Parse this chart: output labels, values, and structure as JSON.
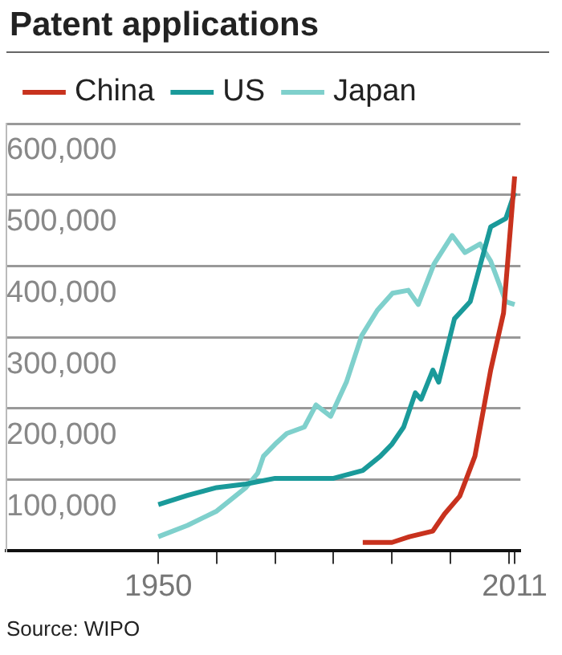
{
  "chart_data": {
    "type": "line",
    "title": "Patent applications",
    "annotations": [
      "Source: WIPO"
    ],
    "legend": "top left",
    "grid": "y",
    "marker": "none",
    "line_style": "solid",
    "xlim": [
      1924,
      2012
    ],
    "xticks": [
      1950,
      {
        "value": 1960,
        "label": null
      },
      {
        "value": 1970,
        "label": null
      },
      {
        "value": 1980,
        "label": null
      },
      {
        "value": 1990,
        "label": null
      },
      {
        "value": 2000,
        "label": null
      },
      {
        "value": 2010,
        "label": null
      },
      2011
    ],
    "ylim": [
      0,
      600000
    ],
    "yticks": [
      {
        "value": 0,
        "label": null
      },
      {
        "value": 100000,
        "label": "100,000"
      },
      {
        "value": 200000,
        "label": "200,000"
      },
      {
        "value": 300000,
        "label": "300,000"
      },
      {
        "value": 400000,
        "label": "400,000"
      },
      {
        "value": 500000,
        "label": "500,000"
      },
      {
        "value": 600000,
        "label": "600,000"
      }
    ],
    "series": [
      {
        "name": "China",
        "color": "#c8321e",
        "x": [
          1985,
          1990,
          1993,
          1997,
          1999,
          2001.6,
          2004.2,
          2006.9,
          2009.1,
          2011
        ],
        "values": [
          12000,
          12000,
          20000,
          28000,
          52000,
          77000,
          133000,
          254000,
          334000,
          526000
        ]
      },
      {
        "name": "US",
        "color": "#1a9a9a",
        "x": [
          1950,
          1955,
          1960,
          1965,
          1970,
          1975,
          1980,
          1985,
          1988,
          1990,
          1992,
          1994,
          1995,
          1997,
          1998,
          2000.7,
          2003.4,
          2006.9,
          2009.5,
          2011
        ],
        "values": [
          65000,
          78000,
          89000,
          94000,
          102000,
          102000,
          102000,
          113000,
          133000,
          150000,
          174000,
          222000,
          213000,
          254000,
          237000,
          326000,
          350000,
          455000,
          467000,
          503000
        ]
      },
      {
        "name": "Japan",
        "color": "#7fd0cc",
        "x": [
          1950,
          1955,
          1960,
          1965,
          1967,
          1968,
          1970,
          1972,
          1975,
          1977,
          1979.5,
          1982.2,
          1984.8,
          1987.5,
          1990.1,
          1992.8,
          1994.5,
          1997.2,
          2000.3,
          2002.5,
          2005.1,
          2006.9,
          2009.5,
          2011
        ],
        "values": [
          20000,
          36000,
          56000,
          89000,
          109000,
          133000,
          150000,
          165000,
          174000,
          205000,
          189000,
          237000,
          302000,
          338000,
          362000,
          366000,
          346000,
          403000,
          443000,
          419000,
          431000,
          407000,
          350000,
          346000
        ]
      }
    ]
  }
}
